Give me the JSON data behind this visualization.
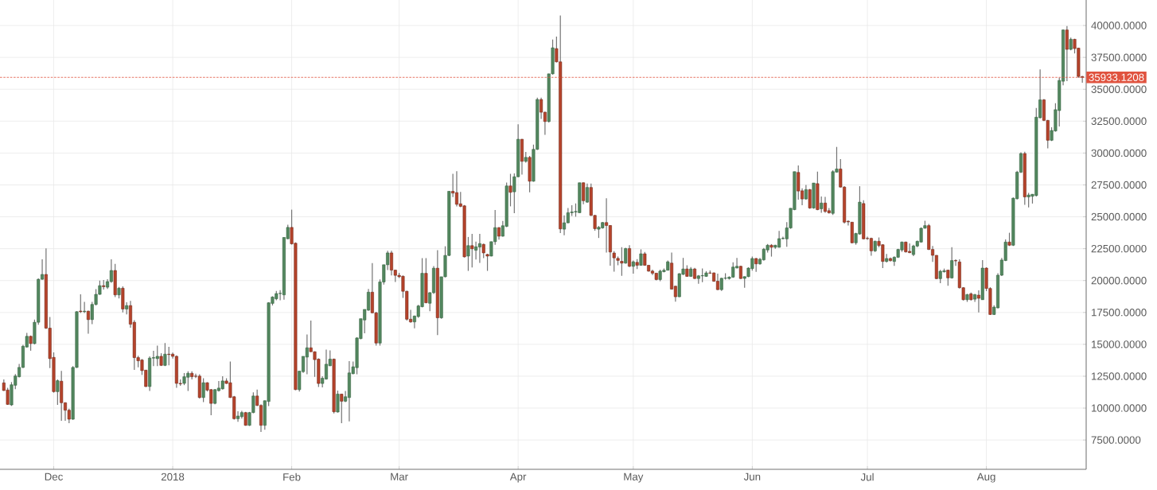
{
  "chart_data": {
    "type": "candlestick",
    "x": [
      "2017-11-18",
      "2017-11-19",
      "2017-11-20",
      "2017-11-21",
      "2017-11-22",
      "2017-11-23",
      "2017-11-24",
      "2017-11-25",
      "2017-11-26",
      "2017-11-27",
      "2017-11-28",
      "2017-11-29",
      "2017-11-30",
      "2017-12-01",
      "2017-12-02",
      "2017-12-03",
      "2017-12-04",
      "2017-12-05",
      "2017-12-06",
      "2017-12-07",
      "2017-12-08",
      "2017-12-09",
      "2017-12-10",
      "2017-12-11",
      "2017-12-12",
      "2017-12-13",
      "2017-12-14",
      "2017-12-15",
      "2017-12-16",
      "2017-12-17",
      "2017-12-18",
      "2017-12-19",
      "2017-12-20",
      "2017-12-21",
      "2017-12-22",
      "2017-12-23",
      "2017-12-24",
      "2017-12-25",
      "2017-12-26",
      "2017-12-27",
      "2017-12-28",
      "2017-12-29",
      "2017-12-30",
      "2017-12-31",
      "2018-01-01",
      "2018-01-02",
      "2018-01-03",
      "2018-01-04",
      "2018-01-05",
      "2018-01-06",
      "2018-01-07",
      "2018-01-08",
      "2018-01-09",
      "2018-01-10",
      "2018-01-11",
      "2018-01-12",
      "2018-01-13",
      "2018-01-14",
      "2018-01-15",
      "2018-01-16",
      "2018-01-17",
      "2018-01-18",
      "2018-01-19",
      "2018-01-20",
      "2018-01-21",
      "2018-01-22",
      "2018-01-23",
      "2018-01-24",
      "2018-01-25",
      "2018-01-26",
      "2018-01-27",
      "2018-01-28",
      "2018-01-29",
      "2018-01-30",
      "2018-01-31",
      "2018-02-01",
      "2018-02-02",
      "2018-02-03",
      "2018-02-04",
      "2018-02-05",
      "2018-02-06",
      "2018-02-07",
      "2018-02-08",
      "2018-02-09",
      "2018-02-10",
      "2018-02-11",
      "2018-02-12",
      "2018-02-13",
      "2018-02-14",
      "2018-02-15",
      "2018-02-16",
      "2018-02-17",
      "2018-02-18",
      "2018-02-19",
      "2018-02-20",
      "2018-02-21",
      "2018-02-22",
      "2018-02-23",
      "2018-02-24",
      "2018-02-25",
      "2018-02-26",
      "2018-02-27",
      "2018-02-28",
      "2018-03-01",
      "2018-03-02",
      "2018-03-03",
      "2018-03-04",
      "2018-03-05",
      "2018-03-06",
      "2018-03-07",
      "2018-03-08",
      "2018-03-09",
      "2018-03-10",
      "2018-03-11",
      "2018-03-12",
      "2018-03-13",
      "2018-03-14",
      "2018-03-15",
      "2018-03-16",
      "2018-03-17",
      "2018-03-18",
      "2018-03-19",
      "2018-03-20",
      "2018-03-21",
      "2018-03-22",
      "2018-03-23",
      "2018-03-24",
      "2018-03-25",
      "2018-03-26",
      "2018-03-27",
      "2018-03-28",
      "2018-03-29",
      "2018-03-30",
      "2018-03-31",
      "2018-04-01",
      "2018-04-02",
      "2018-04-03",
      "2018-04-04",
      "2018-04-05",
      "2018-04-06",
      "2018-04-07",
      "2018-04-08",
      "2018-04-09",
      "2018-04-10",
      "2018-04-11",
      "2018-04-12",
      "2018-04-13",
      "2018-04-14",
      "2018-04-15",
      "2018-04-16",
      "2018-04-17",
      "2018-04-18",
      "2018-04-19",
      "2018-04-20",
      "2018-04-21",
      "2018-04-22",
      "2018-04-23",
      "2018-04-24",
      "2018-04-25",
      "2018-04-26",
      "2018-04-27",
      "2018-04-28",
      "2018-04-29",
      "2018-04-30",
      "2018-05-01",
      "2018-05-02",
      "2018-05-03",
      "2018-05-04",
      "2018-05-05",
      "2018-05-06",
      "2018-05-07",
      "2018-05-08",
      "2018-05-09",
      "2018-05-10",
      "2018-05-11",
      "2018-05-12",
      "2018-05-13",
      "2018-05-14",
      "2018-05-15",
      "2018-05-16",
      "2018-05-17",
      "2018-05-18",
      "2018-05-19",
      "2018-05-20",
      "2018-05-21",
      "2018-05-22",
      "2018-05-23",
      "2018-05-24",
      "2018-05-25",
      "2018-05-26",
      "2018-05-27",
      "2018-05-28",
      "2018-05-29",
      "2018-05-30",
      "2018-05-31",
      "2018-06-01",
      "2018-06-02",
      "2018-06-03",
      "2018-06-04",
      "2018-06-05",
      "2018-06-06",
      "2018-06-07",
      "2018-06-08",
      "2018-06-09",
      "2018-06-10",
      "2018-06-11",
      "2018-06-12",
      "2018-06-13",
      "2018-06-14",
      "2018-06-15",
      "2018-06-16",
      "2018-06-17",
      "2018-06-18",
      "2018-06-19",
      "2018-06-20",
      "2018-06-21",
      "2018-06-22",
      "2018-06-23",
      "2018-06-24",
      "2018-06-25",
      "2018-06-26",
      "2018-06-27",
      "2018-06-28",
      "2018-06-29",
      "2018-06-30",
      "2018-07-01",
      "2018-07-02",
      "2018-07-03",
      "2018-07-04",
      "2018-07-05",
      "2018-07-06",
      "2018-07-07",
      "2018-07-08",
      "2018-07-09",
      "2018-07-10",
      "2018-07-11",
      "2018-07-12",
      "2018-07-13",
      "2018-07-14",
      "2018-07-15",
      "2018-07-16",
      "2018-07-17",
      "2018-07-18",
      "2018-07-19",
      "2018-07-20",
      "2018-07-21",
      "2018-07-22",
      "2018-07-23",
      "2018-07-24",
      "2018-07-25",
      "2018-07-26",
      "2018-07-27",
      "2018-07-28",
      "2018-07-29",
      "2018-07-30",
      "2018-07-31",
      "2018-08-01",
      "2018-08-02",
      "2018-08-03",
      "2018-08-04",
      "2018-08-05",
      "2018-08-06",
      "2018-08-07",
      "2018-08-08",
      "2018-08-09",
      "2018-08-10",
      "2018-08-11",
      "2018-08-12",
      "2018-08-13",
      "2018-08-14",
      "2018-08-15",
      "2018-08-16",
      "2018-08-17",
      "2018-08-18",
      "2018-08-19",
      "2018-08-20",
      "2018-08-21",
      "2018-08-22",
      "2018-08-23",
      "2018-08-24",
      "2018-08-25",
      "2018-08-26"
    ],
    "ohlc": [
      [
        11980,
        12250,
        11350,
        11380
      ],
      [
        11420,
        11600,
        10250,
        10290
      ],
      [
        10250,
        12040,
        10170,
        11830
      ],
      [
        11790,
        12670,
        11480,
        12520
      ],
      [
        12460,
        13460,
        12400,
        13190
      ],
      [
        13190,
        14960,
        13130,
        14850
      ],
      [
        14790,
        15900,
        14750,
        15630
      ],
      [
        15630,
        15690,
        14500,
        15060
      ],
      [
        15060,
        16940,
        15000,
        16730
      ],
      [
        16730,
        20170,
        16530,
        20100
      ],
      [
        20100,
        21670,
        20060,
        20480
      ],
      [
        20480,
        22520,
        16210,
        16270
      ],
      [
        16270,
        17150,
        13130,
        13880
      ],
      [
        13980,
        14370,
        11210,
        11290
      ],
      [
        11290,
        12250,
        10250,
        12150
      ],
      [
        12110,
        12920,
        9000,
        10420
      ],
      [
        10420,
        10460,
        9000,
        9835
      ],
      [
        9835,
        9960,
        8820,
        9130
      ],
      [
        9130,
        13290,
        9090,
        13190
      ],
      [
        13190,
        17600,
        13150,
        17560
      ],
      [
        17610,
        18920,
        17460,
        17560
      ],
      [
        17560,
        18330,
        17460,
        17600
      ],
      [
        17600,
        17650,
        15830,
        16940
      ],
      [
        16940,
        18330,
        16580,
        18130
      ],
      [
        18130,
        19330,
        18050,
        18920
      ],
      [
        18920,
        20000,
        18880,
        19600
      ],
      [
        19600,
        20040,
        19300,
        19520
      ],
      [
        19480,
        20100,
        19350,
        19920
      ],
      [
        19920,
        21670,
        19830,
        20790
      ],
      [
        20790,
        21300,
        18700,
        18880
      ],
      [
        18880,
        19500,
        18600,
        19400
      ],
      [
        19400,
        19550,
        17500,
        17770
      ],
      [
        17770,
        18300,
        17350,
        18040
      ],
      [
        18040,
        18400,
        16300,
        16580
      ],
      [
        16730,
        16900,
        13000,
        13960
      ],
      [
        13960,
        14100,
        13200,
        13710
      ],
      [
        13770,
        13850,
        12600,
        12940
      ],
      [
        12980,
        13000,
        11650,
        11690
      ],
      [
        11690,
        14060,
        11350,
        13920
      ],
      [
        13920,
        14500,
        13300,
        13960
      ],
      [
        13880,
        14900,
        13300,
        14060
      ],
      [
        14060,
        14300,
        13300,
        13350
      ],
      [
        13350,
        15100,
        13300,
        14230
      ],
      [
        14230,
        14800,
        13350,
        14200
      ],
      [
        14230,
        14350,
        13880,
        14060
      ],
      [
        14060,
        14130,
        11600,
        11940
      ],
      [
        11940,
        12250,
        11750,
        11900
      ],
      [
        11940,
        12750,
        11800,
        12460
      ],
      [
        12420,
        12880,
        11350,
        12730
      ],
      [
        12730,
        12880,
        12250,
        12460
      ],
      [
        12510,
        12700,
        12350,
        12490
      ],
      [
        12510,
        12650,
        10750,
        10830
      ],
      [
        10830,
        12340,
        10470,
        11990
      ],
      [
        11990,
        12030,
        11300,
        11410
      ],
      [
        11450,
        11500,
        9440,
        10370
      ],
      [
        10370,
        11500,
        10300,
        11450
      ],
      [
        11370,
        12130,
        11300,
        11570
      ],
      [
        11510,
        12490,
        11450,
        12130
      ],
      [
        12130,
        12340,
        11900,
        11930
      ],
      [
        11990,
        13650,
        10800,
        10830
      ],
      [
        10890,
        10950,
        9100,
        9170
      ],
      [
        9170,
        9750,
        8920,
        9380
      ],
      [
        9330,
        9790,
        9170,
        9650
      ],
      [
        9650,
        9700,
        8610,
        8650
      ],
      [
        8650,
        9700,
        8600,
        9650
      ],
      [
        9650,
        11240,
        9600,
        10950
      ],
      [
        10950,
        11450,
        10160,
        10210
      ],
      [
        10210,
        10300,
        8130,
        8650
      ],
      [
        8650,
        10600,
        8300,
        10580
      ],
      [
        10520,
        18300,
        10160,
        18260
      ],
      [
        18210,
        18770,
        18050,
        18710
      ],
      [
        18570,
        19190,
        18460,
        18980
      ],
      [
        18980,
        19250,
        18460,
        19000
      ],
      [
        18880,
        23400,
        18500,
        23380
      ],
      [
        23280,
        24380,
        23240,
        24170
      ],
      [
        24170,
        25560,
        22820,
        22880
      ],
      [
        22930,
        22990,
        11410,
        11450
      ],
      [
        11450,
        12900,
        11300,
        12900
      ],
      [
        12860,
        14060,
        12760,
        14060
      ],
      [
        14000,
        15770,
        12650,
        14730
      ],
      [
        14730,
        16860,
        14400,
        14420
      ],
      [
        14420,
        14450,
        12450,
        13800
      ],
      [
        13840,
        13900,
        11660,
        11930
      ],
      [
        11930,
        12490,
        11620,
        12340
      ],
      [
        12280,
        14580,
        12240,
        13440
      ],
      [
        13320,
        14520,
        13300,
        13840
      ],
      [
        13840,
        13880,
        9580,
        9710
      ],
      [
        9690,
        11370,
        9650,
        11100
      ],
      [
        11100,
        11120,
        8820,
        10540
      ],
      [
        10540,
        11350,
        10470,
        10890
      ],
      [
        10830,
        13690,
        8960,
        12760
      ],
      [
        12700,
        13650,
        12650,
        13240
      ],
      [
        13170,
        15560,
        12650,
        15500
      ],
      [
        15450,
        17010,
        15400,
        17010
      ],
      [
        16910,
        17740,
        15870,
        17740
      ],
      [
        17680,
        19340,
        17630,
        19090
      ],
      [
        19090,
        21370,
        17430,
        17470
      ],
      [
        17470,
        17550,
        14900,
        15100
      ],
      [
        15100,
        20090,
        14900,
        19890
      ],
      [
        19890,
        21240,
        19680,
        21240
      ],
      [
        21240,
        22340,
        20820,
        22170
      ],
      [
        22170,
        22340,
        20410,
        20820
      ],
      [
        20820,
        20850,
        19890,
        20410
      ],
      [
        20410,
        20610,
        20200,
        20300
      ],
      [
        20340,
        20400,
        18640,
        19160
      ],
      [
        19160,
        19200,
        16870,
        16970
      ],
      [
        16970,
        17700,
        16700,
        16760
      ],
      [
        16760,
        17250,
        16250,
        17220
      ],
      [
        17180,
        18100,
        17080,
        18010
      ],
      [
        17950,
        21760,
        17900,
        20570
      ],
      [
        20570,
        21760,
        18220,
        18260
      ],
      [
        18220,
        19100,
        17600,
        19050
      ],
      [
        19050,
        21140,
        18950,
        20970
      ],
      [
        20970,
        22380,
        15730,
        17080
      ],
      [
        17080,
        20300,
        17000,
        20300
      ],
      [
        20300,
        22690,
        20250,
        21970
      ],
      [
        21970,
        27000,
        21920,
        27000
      ],
      [
        27000,
        28370,
        26540,
        26860
      ],
      [
        26900,
        28580,
        25820,
        25980
      ],
      [
        26020,
        26960,
        25750,
        25820
      ],
      [
        25860,
        25920,
        21800,
        21860
      ],
      [
        21920,
        23420,
        20760,
        22740
      ],
      [
        22740,
        23670,
        21030,
        22490
      ],
      [
        22380,
        23050,
        21650,
        22650
      ],
      [
        22630,
        23670,
        21380,
        22900
      ],
      [
        22840,
        22900,
        21760,
        22170
      ],
      [
        22050,
        22100,
        20760,
        21920
      ],
      [
        21920,
        23050,
        21900,
        23050
      ],
      [
        23050,
        25540,
        22800,
        24150
      ],
      [
        24150,
        24200,
        23210,
        23480
      ],
      [
        23480,
        24670,
        23450,
        24300
      ],
      [
        24250,
        27690,
        24200,
        27420
      ],
      [
        27420,
        28370,
        25820,
        26920
      ],
      [
        26960,
        28410,
        25290,
        28140
      ],
      [
        28140,
        32260,
        28100,
        31080
      ],
      [
        31080,
        31100,
        28310,
        29350
      ],
      [
        29350,
        30080,
        29250,
        29660
      ],
      [
        29660,
        29770,
        26920,
        27790
      ],
      [
        27790,
        30660,
        27750,
        30290
      ],
      [
        30290,
        34340,
        30250,
        34200
      ],
      [
        34200,
        34340,
        32680,
        33200
      ],
      [
        33200,
        33250,
        31430,
        32470
      ],
      [
        32470,
        36210,
        32400,
        36210
      ],
      [
        36210,
        38900,
        36150,
        38250
      ],
      [
        38190,
        39130,
        37100,
        37150
      ],
      [
        37150,
        40790,
        23730,
        24050
      ],
      [
        24030,
        25110,
        23550,
        24530
      ],
      [
        24530,
        25690,
        24490,
        25320
      ],
      [
        25320,
        25900,
        25070,
        25380
      ],
      [
        25380,
        26050,
        25010,
        25420
      ],
      [
        25320,
        27670,
        25300,
        27670
      ],
      [
        27670,
        27700,
        25990,
        26260
      ],
      [
        26150,
        27610,
        26100,
        27300
      ],
      [
        27300,
        27610,
        25070,
        25110
      ],
      [
        25110,
        25150,
        23910,
        24070
      ],
      [
        24030,
        24280,
        23340,
        24180
      ],
      [
        24130,
        24600,
        24070,
        24550
      ],
      [
        24550,
        26460,
        22200,
        24320
      ],
      [
        24320,
        24350,
        21160,
        22240
      ],
      [
        22160,
        22300,
        20700,
        21780
      ],
      [
        21740,
        21890,
        21200,
        21580
      ],
      [
        21510,
        22620,
        20370,
        21370
      ],
      [
        21370,
        22570,
        21330,
        22510
      ],
      [
        22510,
        22780,
        21060,
        21120
      ],
      [
        21120,
        21580,
        20540,
        21470
      ],
      [
        21430,
        21680,
        20910,
        21200
      ],
      [
        21200,
        22450,
        21160,
        22100
      ],
      [
        22100,
        22240,
        21160,
        21200
      ],
      [
        21200,
        21210,
        20700,
        20740
      ],
      [
        20740,
        20850,
        20430,
        20580
      ],
      [
        20580,
        20590,
        20020,
        20080
      ],
      [
        20080,
        20850,
        19950,
        20740
      ],
      [
        20700,
        20950,
        20640,
        20810
      ],
      [
        20810,
        21580,
        20790,
        21470
      ],
      [
        21370,
        22200,
        19290,
        19330
      ],
      [
        19560,
        19600,
        18350,
        18730
      ],
      [
        18730,
        20580,
        18710,
        20540
      ],
      [
        20490,
        21780,
        20430,
        20910
      ],
      [
        20910,
        21200,
        20290,
        20330
      ],
      [
        20330,
        21060,
        20290,
        20910
      ],
      [
        20910,
        20990,
        20120,
        20160
      ],
      [
        20160,
        20430,
        19750,
        20370
      ],
      [
        20370,
        20950,
        19870,
        20390
      ],
      [
        20330,
        20740,
        20290,
        20600
      ],
      [
        20600,
        20790,
        20540,
        20580
      ],
      [
        20600,
        20640,
        19910,
        19950
      ],
      [
        19950,
        20540,
        19250,
        19290
      ],
      [
        19290,
        20220,
        19180,
        20180
      ],
      [
        20180,
        20580,
        20080,
        20200
      ],
      [
        20160,
        20330,
        20080,
        20270
      ],
      [
        20270,
        21430,
        20220,
        21060
      ],
      [
        20990,
        21780,
        20950,
        21120
      ],
      [
        21120,
        21160,
        20120,
        20160
      ],
      [
        20170,
        20330,
        19440,
        20310
      ],
      [
        20310,
        21040,
        20270,
        20980
      ],
      [
        20940,
        21880,
        20770,
        21730
      ],
      [
        21730,
        21770,
        20690,
        21310
      ],
      [
        21310,
        21770,
        21250,
        21670
      ],
      [
        21630,
        22560,
        21560,
        22460
      ],
      [
        22400,
        22860,
        22190,
        22770
      ],
      [
        22770,
        22860,
        21880,
        22610
      ],
      [
        22610,
        22810,
        22500,
        22770
      ],
      [
        22610,
        23900,
        22580,
        23290
      ],
      [
        23290,
        23440,
        23230,
        23310
      ],
      [
        23270,
        24580,
        22650,
        24130
      ],
      [
        24130,
        25670,
        24060,
        25670
      ],
      [
        25560,
        28540,
        25520,
        28540
      ],
      [
        28480,
        29020,
        26350,
        27020
      ],
      [
        27040,
        27230,
        25900,
        26400
      ],
      [
        26400,
        27500,
        26350,
        27130
      ],
      [
        27130,
        27190,
        25630,
        25690
      ],
      [
        25690,
        27650,
        25630,
        27650
      ],
      [
        27600,
        28540,
        25520,
        25560
      ],
      [
        25630,
        26600,
        25310,
        26080
      ],
      [
        26080,
        26560,
        25310,
        25420
      ],
      [
        25480,
        25690,
        25250,
        25310
      ],
      [
        25270,
        28650,
        25150,
        28540
      ],
      [
        28500,
        30480,
        28480,
        28750
      ],
      [
        28750,
        29520,
        27290,
        27330
      ],
      [
        27330,
        27400,
        24480,
        24580
      ],
      [
        24650,
        24730,
        24310,
        24600
      ],
      [
        24580,
        24600,
        22920,
        22960
      ],
      [
        22960,
        23750,
        22810,
        23690
      ],
      [
        23650,
        27400,
        23600,
        26150
      ],
      [
        26040,
        26290,
        23230,
        23270
      ],
      [
        23310,
        23440,
        23190,
        23290
      ],
      [
        23310,
        23360,
        21940,
        22330
      ],
      [
        22330,
        23130,
        22250,
        23080
      ],
      [
        23080,
        23380,
        22610,
        22750
      ],
      [
        22810,
        22850,
        20980,
        21500
      ],
      [
        21500,
        22080,
        21420,
        21730
      ],
      [
        21730,
        21810,
        21500,
        21560
      ],
      [
        21500,
        21900,
        21150,
        21830
      ],
      [
        21830,
        22500,
        21770,
        22440
      ],
      [
        22400,
        23060,
        22250,
        23020
      ],
      [
        23020,
        23050,
        22190,
        22250
      ],
      [
        22290,
        22920,
        22150,
        22190
      ],
      [
        22040,
        22810,
        21920,
        22710
      ],
      [
        22710,
        23130,
        22610,
        23080
      ],
      [
        23020,
        24170,
        22980,
        24100
      ],
      [
        24110,
        24690,
        24070,
        24310
      ],
      [
        24310,
        24440,
        22400,
        22440
      ],
      [
        22440,
        22710,
        21460,
        21980
      ],
      [
        21980,
        22000,
        20110,
        20150
      ],
      [
        20150,
        20840,
        19790,
        20730
      ],
      [
        20690,
        20940,
        20630,
        20770
      ],
      [
        20820,
        20840,
        19590,
        20210
      ],
      [
        20210,
        22610,
        20150,
        21570
      ],
      [
        21570,
        21670,
        21150,
        21540
      ],
      [
        21460,
        21670,
        19380,
        19440
      ],
      [
        19440,
        19480,
        18440,
        18500
      ],
      [
        18500,
        18960,
        18330,
        18900
      ],
      [
        18960,
        19070,
        18440,
        18500
      ],
      [
        18540,
        18960,
        18330,
        18900
      ],
      [
        18860,
        19230,
        17510,
        18610
      ],
      [
        18500,
        21610,
        18480,
        20980
      ],
      [
        20980,
        21040,
        19170,
        19380
      ],
      [
        19380,
        19480,
        17300,
        17340
      ],
      [
        17340,
        18070,
        17300,
        17920
      ],
      [
        17860,
        20570,
        17820,
        20420
      ],
      [
        20420,
        21770,
        20360,
        21610
      ],
      [
        21570,
        23230,
        21520,
        23020
      ],
      [
        23020,
        23750,
        22710,
        22770
      ],
      [
        22770,
        26520,
        22710,
        26460
      ],
      [
        26420,
        28610,
        26360,
        28500
      ],
      [
        28500,
        30060,
        28440,
        29960
      ],
      [
        29960,
        30110,
        25940,
        26560
      ],
      [
        26560,
        26880,
        25730,
        26710
      ],
      [
        26610,
        26770,
        26040,
        26770
      ],
      [
        26670,
        33540,
        26600,
        32810
      ],
      [
        32770,
        36560,
        32700,
        34170
      ],
      [
        34170,
        34230,
        32500,
        32560
      ],
      [
        32560,
        32600,
        30360,
        31000
      ],
      [
        31000,
        32020,
        30940,
        31770
      ],
      [
        31730,
        33900,
        31670,
        33400
      ],
      [
        33330,
        35900,
        32080,
        35690
      ],
      [
        35630,
        39690,
        35310,
        39650
      ],
      [
        39650,
        39960,
        35630,
        38130
      ],
      [
        38130,
        39060,
        38060,
        38920
      ],
      [
        38920,
        38960,
        37810,
        38190
      ],
      [
        38230,
        38250,
        35900,
        36000
      ],
      [
        36000,
        36040,
        35520,
        35933
      ]
    ],
    "xlim": [
      "2017-11-17",
      "2018-08-27"
    ],
    "ylim": [
      5200,
      42000
    ],
    "xticks": [
      {
        "value": "2017-12-01",
        "label": "Dec"
      },
      {
        "value": "2018-01-01",
        "label": "2018"
      },
      {
        "value": "2018-02-01",
        "label": "Feb"
      },
      {
        "value": "2018-03-01",
        "label": "Mar"
      },
      {
        "value": "2018-04-01",
        "label": "Apr"
      },
      {
        "value": "2018-05-01",
        "label": "May"
      },
      {
        "value": "2018-06-01",
        "label": "Jun"
      },
      {
        "value": "2018-07-01",
        "label": "Jul"
      },
      {
        "value": "2018-08-01",
        "label": "Aug"
      }
    ],
    "yticks": [
      {
        "value": 7500,
        "label": "7500.0000"
      },
      {
        "value": 10000,
        "label": "10000.0000"
      },
      {
        "value": 12500,
        "label": "12500.0000"
      },
      {
        "value": 15000,
        "label": "15000.0000"
      },
      {
        "value": 17500,
        "label": "17500.0000"
      },
      {
        "value": 20000,
        "label": "20000.0000"
      },
      {
        "value": 22500,
        "label": "22500.0000"
      },
      {
        "value": 25000,
        "label": "25000.0000"
      },
      {
        "value": 27500,
        "label": "27500.0000"
      },
      {
        "value": 30000,
        "label": "30000.0000"
      },
      {
        "value": 32500,
        "label": "32500.0000"
      },
      {
        "value": 35000,
        "label": "35000.0000"
      },
      {
        "value": 37500,
        "label": "37500.0000"
      },
      {
        "value": 40000,
        "label": "40000.0000"
      }
    ],
    "grid": true,
    "ref_lines": [
      {
        "axis": "y",
        "value": 35933.1208,
        "label": "35933.1208",
        "color": "#e0533f",
        "line_style": "dashed"
      }
    ]
  }
}
